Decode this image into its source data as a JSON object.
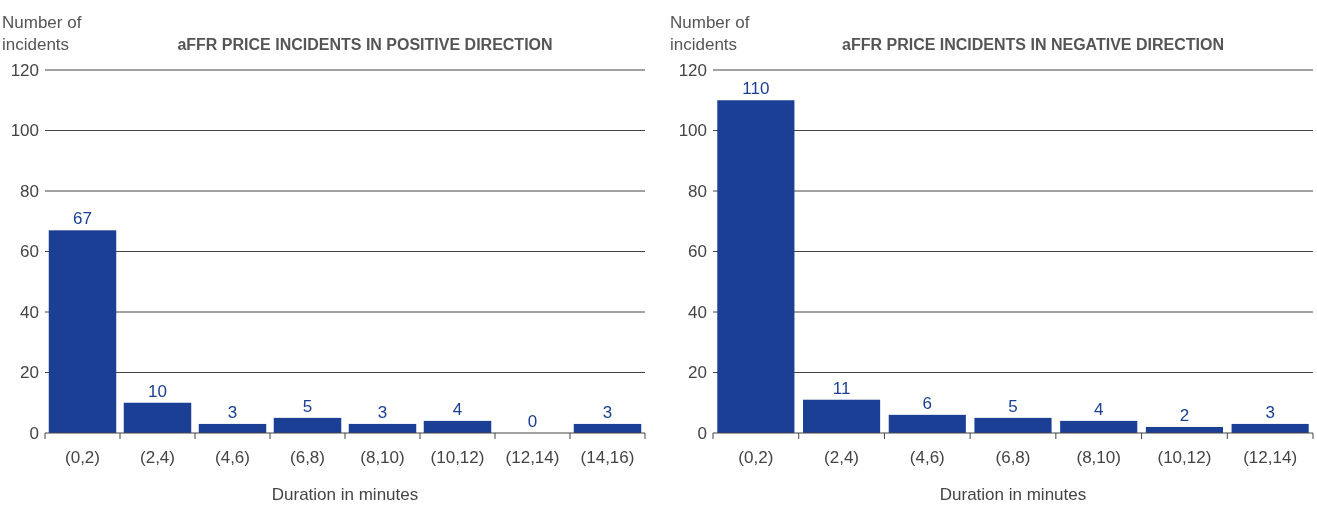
{
  "chart_data": [
    {
      "type": "bar",
      "title": "aFFR PRICE INCIDENTS IN POSITIVE DIRECTION",
      "xlabel": "Duration in minutes",
      "ylabel": "Number of incidents",
      "categories": [
        "(0,2)",
        "(2,4)",
        "(4,6)",
        "(6,8)",
        "(8,10)",
        "(10,12)",
        "(12,14)",
        "(14,16)"
      ],
      "values": [
        67,
        10,
        3,
        5,
        3,
        4,
        0,
        3
      ],
      "color": "#1a3f94",
      "ylim": [
        0,
        120
      ],
      "yticks": [
        0,
        20,
        40,
        60,
        80,
        100,
        120
      ],
      "grid": "y",
      "data_labels": true
    },
    {
      "type": "bar",
      "title": "aFFR PRICE INCIDENTS IN NEGATIVE DIRECTION",
      "xlabel": "Duration in minutes",
      "ylabel": "Number of incidents",
      "categories": [
        "(0,2)",
        "(2,4)",
        "(4,6)",
        "(6,8)",
        "(8,10)",
        "(10,12)",
        "(12,14)"
      ],
      "values": [
        110,
        11,
        6,
        5,
        4,
        2,
        3
      ],
      "color": "#1a3f94",
      "ylim": [
        0,
        120
      ],
      "yticks": [
        0,
        20,
        40,
        60,
        80,
        100,
        120
      ],
      "grid": "y",
      "data_labels": true
    }
  ]
}
